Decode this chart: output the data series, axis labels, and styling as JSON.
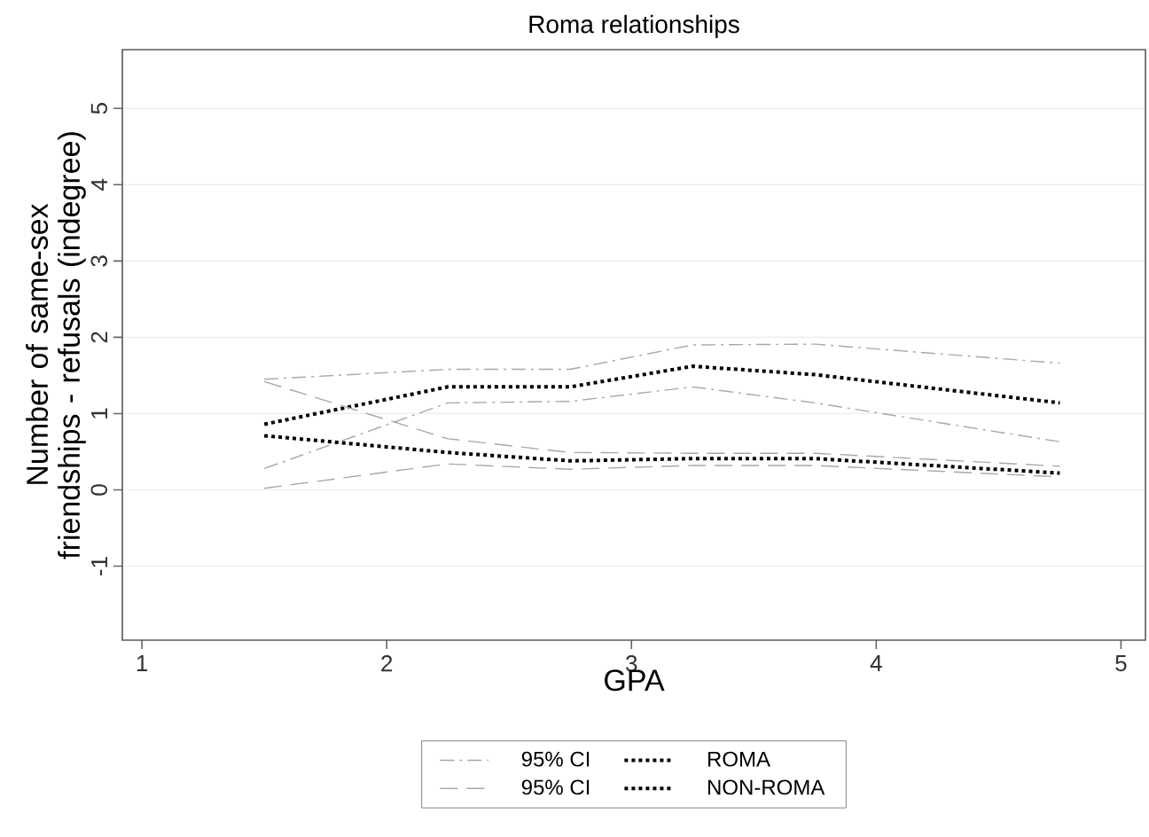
{
  "chart_data": {
    "type": "line",
    "title": "Roma relationships",
    "xlabel": "GPA",
    "ylabel": "Number of same-sex friendships - refusals (indegree)",
    "x": [
      1.5,
      2.25,
      2.75,
      3.25,
      3.75,
      4.75
    ],
    "series": [
      {
        "name": "95% CI",
        "color": "#a8a8a8",
        "line_style": "dashdot",
        "values": [
          1.45,
          1.58,
          1.58,
          1.9,
          1.91,
          1.66
        ]
      },
      {
        "color": "#a8a8a8",
        "line_style": "dashdot",
        "values": [
          0.28,
          1.14,
          1.16,
          1.35,
          1.14,
          0.63
        ]
      },
      {
        "name": "ROMA",
        "color": "#000000",
        "line_style": "dotted",
        "values": [
          0.86,
          1.35,
          1.35,
          1.62,
          1.51,
          1.14
        ]
      },
      {
        "name": "95% CI",
        "color": "#a8a8a8",
        "line_style": "dashed",
        "values": [
          1.42,
          0.67,
          0.49,
          0.48,
          0.48,
          0.31
        ]
      },
      {
        "color": "#a8a8a8",
        "line_style": "dashed",
        "values": [
          0.02,
          0.34,
          0.27,
          0.32,
          0.32,
          0.17
        ]
      },
      {
        "name": "NON-ROMA",
        "color": "#000000",
        "line_style": "dotted",
        "values": [
          0.71,
          0.49,
          0.38,
          0.41,
          0.41,
          0.22
        ]
      }
    ],
    "xlim": [
      0.92,
      5.1
    ],
    "ylim": [
      -1.97,
      5.77
    ],
    "xticks": [
      1,
      2,
      3,
      4,
      5
    ],
    "yticks": [
      -1,
      0,
      1,
      2,
      3,
      4,
      5
    ],
    "grid": "y",
    "legend": "bottom"
  }
}
